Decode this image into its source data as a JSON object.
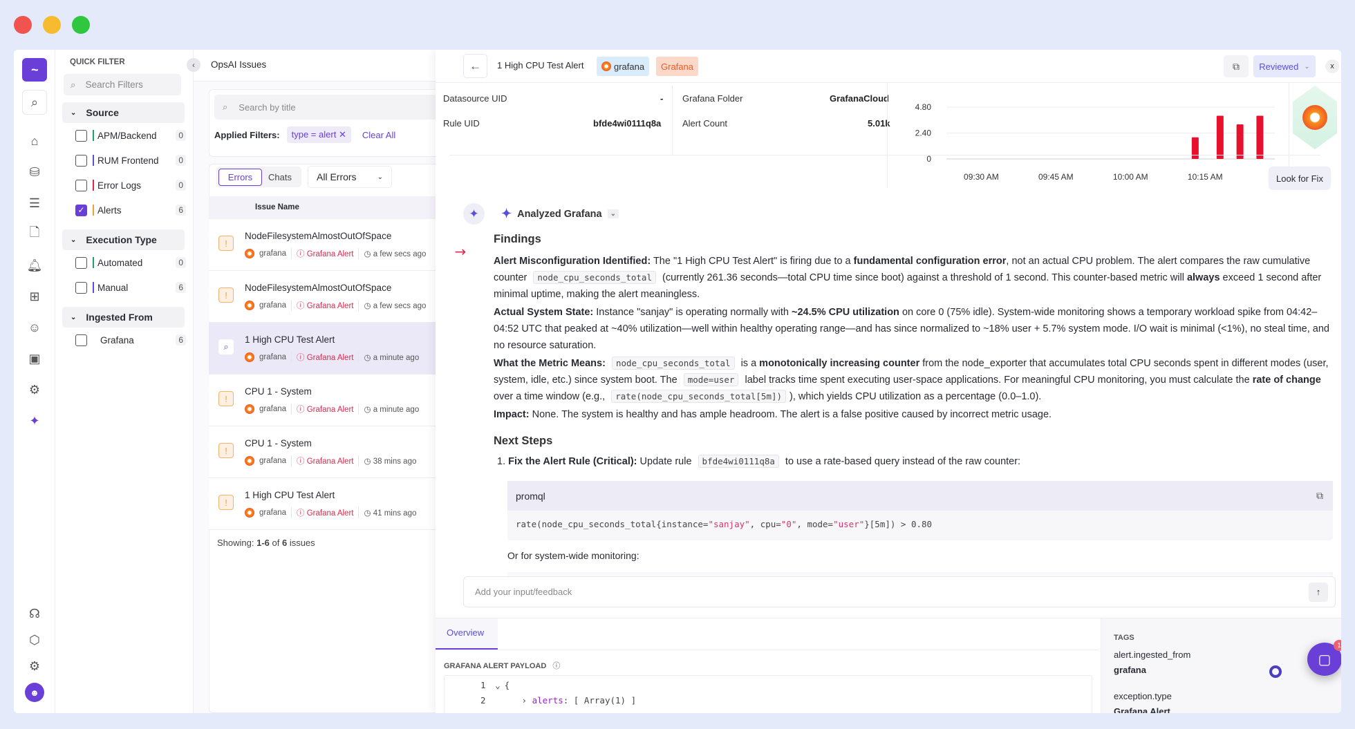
{
  "colors": {
    "accent": "#6a3fd8",
    "alert_red": "#e0264a",
    "grafana_orange": "#f15a24",
    "bg": "#e5eafb"
  },
  "rail": {
    "icons": [
      "search-icon",
      "home-icon",
      "database-icon",
      "list-filter-icon",
      "document-icon",
      "bell-alert-icon",
      "dashboard-add-icon",
      "robot-icon",
      "report-icon",
      "chip-icon",
      "sparkle-icon",
      "headset-icon",
      "cube-icon",
      "gear-icon",
      "avatar"
    ]
  },
  "quick_filter": {
    "title": "QUICK FILTER",
    "search_placeholder": "Search Filters",
    "sections": [
      {
        "title": "Source",
        "items": [
          {
            "label": "APM/Backend",
            "count": "0",
            "checked": false,
            "color": "#1aa36a"
          },
          {
            "label": "RUM Frontend",
            "count": "0",
            "checked": false,
            "color": "#5a4fd8"
          },
          {
            "label": "Error Logs",
            "count": "0",
            "checked": false,
            "color": "#e0264a"
          },
          {
            "label": "Alerts",
            "count": "6",
            "checked": true,
            "color": "#f0a03a"
          }
        ]
      },
      {
        "title": "Execution Type",
        "items": [
          {
            "label": "Automated",
            "count": "0",
            "checked": false,
            "color": "#1aa36a"
          },
          {
            "label": "Manual",
            "count": "6",
            "checked": false,
            "color": "#5a4fd8"
          }
        ]
      },
      {
        "title": "Ingested From",
        "items": [
          {
            "label": "Grafana",
            "count": "6",
            "checked": false
          }
        ]
      }
    ]
  },
  "issues": {
    "title": "OpsAI Issues",
    "search_placeholder": "Search by title",
    "applied_label": "Applied Filters:",
    "filter_chip": "type = alert",
    "clear_all": "Clear All",
    "tabs": [
      "Errors",
      "Chats"
    ],
    "dropdown": "All Errors",
    "column": "Issue Name",
    "rows": [
      {
        "name": "NodeFilesystemAlmostOutOfSpace",
        "source": "grafana",
        "type": "Grafana Alert",
        "time": "a few secs ago"
      },
      {
        "name": "NodeFilesystemAlmostOutOfSpace",
        "source": "grafana",
        "type": "Grafana Alert",
        "time": "a few secs ago"
      },
      {
        "name": "1 High CPU Test Alert",
        "source": "grafana",
        "type": "Grafana Alert",
        "time": "a minute ago",
        "selected": true
      },
      {
        "name": "CPU 1 - System",
        "source": "grafana",
        "type": "Grafana Alert",
        "time": "a minute ago"
      },
      {
        "name": "CPU 1 - System",
        "source": "grafana",
        "type": "Grafana Alert",
        "time": "38 mins ago"
      },
      {
        "name": "1 High CPU Test Alert",
        "source": "grafana",
        "type": "Grafana Alert",
        "time": "41 mins ago"
      }
    ],
    "footer": {
      "prefix": "Showing: ",
      "range": "1-6",
      "of": " of ",
      "total": "6",
      "suffix": " issues"
    }
  },
  "detail": {
    "title": "1 High CPU Test Alert",
    "badge1": "grafana",
    "badge2": "Grafana",
    "status": "Reviewed",
    "close": "x",
    "info": {
      "datasource_label": "Datasource UID",
      "datasource_value": "-",
      "folder_label": "Grafana Folder",
      "folder_value": "GrafanaCloud",
      "rule_label": "Rule UID",
      "rule_value": "bfde4wi0111q8a",
      "count_label": "Alert Count",
      "count_value": "5.01k"
    },
    "look_for_fix": "Look for Fix",
    "analyzed": "Analyzed Grafana",
    "findings_title": "Findings",
    "next_steps_title": "Next Steps",
    "step1": {
      "num": "1.",
      "bold": "Fix the Alert Rule (Critical):",
      "pre": " Update rule ",
      "code": "bfde4wi0111q8a",
      "post": " to use a rate-based query instead of the raw counter:"
    },
    "code_lang": "promql",
    "code": {
      "a": "rate(node_cpu_seconds_total{instance=",
      "b": "\"sanjay\"",
      "c": ", cpu=",
      "d": "\"0\"",
      "e": ", mode=",
      "f": "\"user\"",
      "g": "}[5m]) > 0.80"
    },
    "or_text": "Or for system-wide monitoring:",
    "input_placeholder": "Add your input/feedback",
    "tab_overview": "Overview",
    "payload_title": "GRAFANA ALERT PAYLOAD",
    "payload": {
      "l1": "1",
      "l1t": "{",
      "l2": "2",
      "key": "alerts",
      "l2t": ": [ Array(1) ]"
    },
    "tags_title": "TAGS",
    "tags": [
      {
        "key": "alert.ingested_from",
        "value": "grafana"
      },
      {
        "key": "exception.type",
        "value": "Grafana Alert"
      }
    ],
    "chat_badge": "1"
  },
  "chart_data": {
    "type": "bar",
    "x": [
      "10:13 AM",
      "10:18 AM",
      "10:22 AM",
      "10:26 AM"
    ],
    "values": [
      2.0,
      4.0,
      3.2,
      4.0
    ],
    "yticks": [
      "4.80",
      "2.40",
      "0"
    ],
    "ylim": [
      0,
      4.8
    ],
    "xticks": [
      "09:30 AM",
      "09:45 AM",
      "10:00 AM",
      "10:15 AM"
    ],
    "xlim": [
      "09:23 AM",
      "10:29 AM"
    ],
    "grid": true,
    "color": "#e8112d"
  }
}
